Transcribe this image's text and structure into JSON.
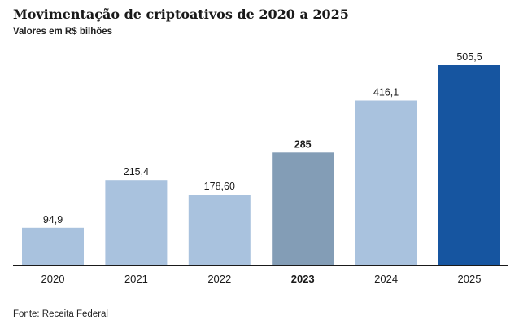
{
  "title": "Movimentação de criptoativos de 2020 a 2025",
  "subtitle": "Valores em R$ bilhões",
  "source": "Fonte: Receita Federal",
  "colors": {
    "default_bar": "#a9c2de",
    "highlight_bar": "#839db6",
    "current_bar": "#1655a0",
    "baseline": "#1a1a1a"
  },
  "chart_data": {
    "type": "bar",
    "title": "Movimentação de criptoativos de 2020 a 2025",
    "subtitle": "Valores em R$ bilhões",
    "xlabel": "",
    "ylabel": "",
    "ylim": [
      0,
      505.5
    ],
    "grid": false,
    "legend": "none",
    "categories": [
      "2020",
      "2021",
      "2022",
      "2023",
      "2024",
      "2025"
    ],
    "values": [
      94.9,
      215.4,
      178.6,
      285,
      416.1,
      505.5
    ],
    "value_labels": [
      "94,9",
      "215,4",
      "178,60",
      "285",
      "416,1",
      "505,5"
    ],
    "bar_styles": [
      "default",
      "default",
      "default",
      "highlight",
      "default",
      "current"
    ],
    "bold_categories": [
      "2023"
    ]
  }
}
